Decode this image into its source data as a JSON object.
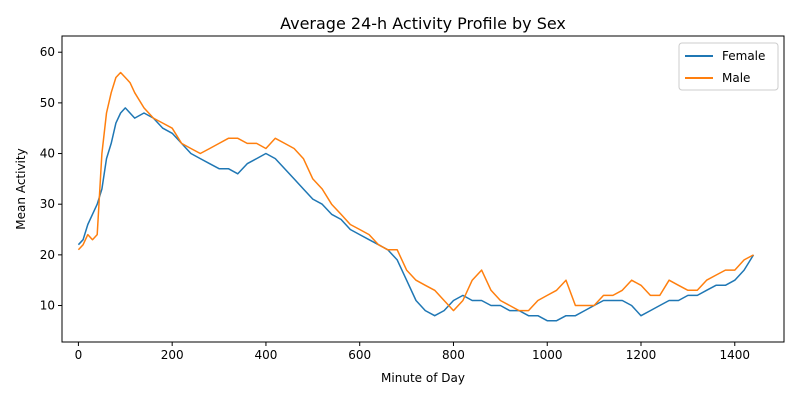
{
  "chart_data": {
    "type": "line",
    "title": "Average 24-h Activity Profile by Sex",
    "xlabel": "Minute of Day",
    "ylabel": "Mean Activity",
    "xlim": [
      -35,
      1505
    ],
    "ylim": [
      2.8,
      63.2
    ],
    "xticks": [
      0,
      200,
      400,
      600,
      800,
      1000,
      1200,
      1400
    ],
    "yticks": [
      10,
      20,
      30,
      40,
      50,
      60
    ],
    "grid": false,
    "legend_position": "top-right",
    "series": [
      {
        "name": "Female",
        "color": "#1f77b4",
        "x": [
          0,
          10,
          20,
          30,
          40,
          50,
          60,
          70,
          80,
          90,
          100,
          110,
          120,
          140,
          160,
          180,
          200,
          220,
          240,
          260,
          280,
          300,
          320,
          340,
          360,
          380,
          400,
          420,
          440,
          460,
          480,
          500,
          520,
          540,
          560,
          580,
          600,
          620,
          640,
          660,
          680,
          700,
          720,
          740,
          760,
          780,
          800,
          820,
          840,
          860,
          880,
          900,
          920,
          940,
          960,
          980,
          1000,
          1020,
          1040,
          1060,
          1080,
          1100,
          1120,
          1140,
          1160,
          1180,
          1200,
          1220,
          1240,
          1260,
          1280,
          1300,
          1320,
          1340,
          1360,
          1380,
          1400,
          1420,
          1440
        ],
        "y": [
          22,
          23,
          26,
          28,
          30,
          33,
          39,
          42,
          46,
          48,
          49,
          48,
          47,
          48,
          47,
          45,
          44,
          42,
          40,
          39,
          38,
          37,
          37,
          36,
          38,
          39,
          40,
          39,
          37,
          35,
          33,
          31,
          30,
          28,
          27,
          25,
          24,
          23,
          22,
          21,
          19,
          15,
          11,
          9,
          8,
          9,
          11,
          12,
          11,
          11,
          10,
          10,
          9,
          9,
          8,
          8,
          7,
          7,
          8,
          8,
          9,
          10,
          11,
          11,
          11,
          10,
          8,
          9,
          10,
          11,
          11,
          12,
          12,
          13,
          14,
          14,
          15,
          17,
          20
        ]
      },
      {
        "name": "Male",
        "color": "#ff7f0e",
        "x": [
          0,
          10,
          20,
          30,
          40,
          50,
          60,
          70,
          80,
          90,
          100,
          110,
          120,
          140,
          160,
          180,
          200,
          220,
          240,
          260,
          280,
          300,
          320,
          340,
          360,
          380,
          400,
          420,
          440,
          460,
          480,
          500,
          520,
          540,
          560,
          580,
          600,
          620,
          640,
          660,
          680,
          700,
          720,
          740,
          760,
          780,
          800,
          820,
          840,
          860,
          880,
          900,
          920,
          940,
          960,
          980,
          1000,
          1020,
          1040,
          1060,
          1080,
          1100,
          1120,
          1140,
          1160,
          1180,
          1200,
          1220,
          1240,
          1260,
          1280,
          1300,
          1320,
          1340,
          1360,
          1380,
          1400,
          1420,
          1440
        ],
        "y": [
          21,
          22,
          24,
          23,
          24,
          40,
          48,
          52,
          55,
          56,
          55,
          54,
          52,
          49,
          47,
          46,
          45,
          42,
          41,
          40,
          41,
          42,
          43,
          43,
          42,
          42,
          41,
          43,
          42,
          41,
          39,
          35,
          33,
          30,
          28,
          26,
          25,
          24,
          22,
          21,
          21,
          17,
          15,
          14,
          13,
          11,
          9,
          11,
          15,
          17,
          13,
          11,
          10,
          9,
          9,
          11,
          12,
          13,
          15,
          10,
          10,
          10,
          12,
          12,
          13,
          15,
          14,
          12,
          12,
          15,
          14,
          13,
          13,
          15,
          16,
          17,
          17,
          19,
          20
        ]
      }
    ]
  }
}
